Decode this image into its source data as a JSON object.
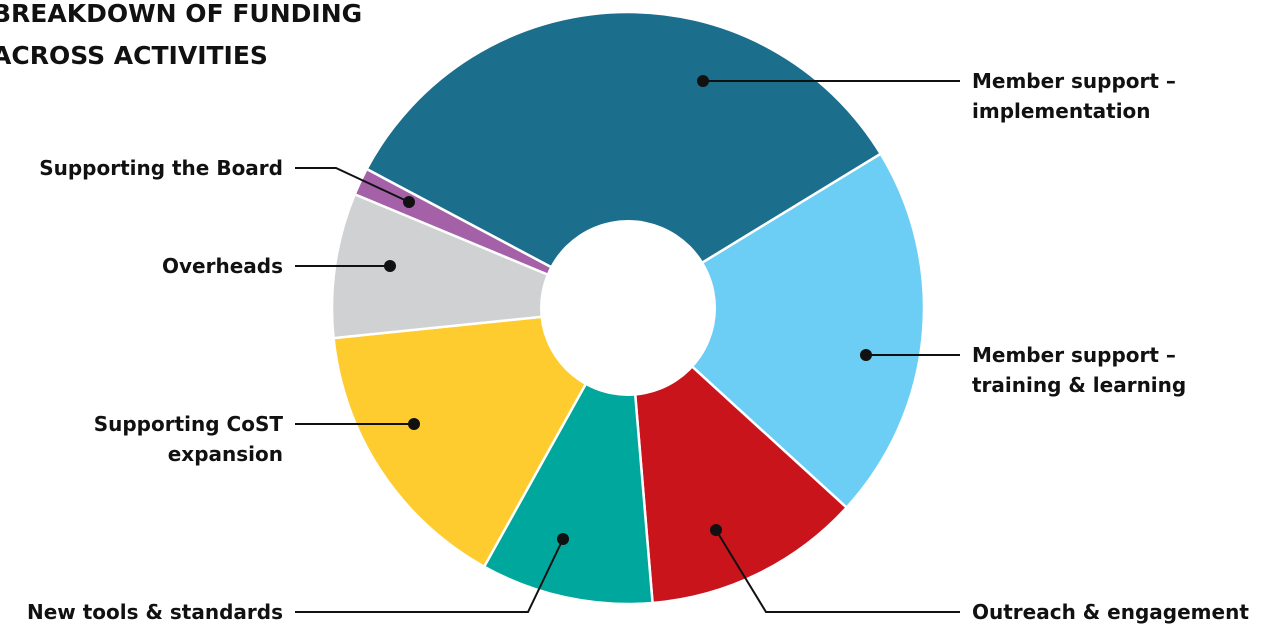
{
  "chart_data": {
    "type": "pie",
    "variant": "donut",
    "title_lines": [
      "BREAKDOWN OF FUNDING",
      "ACROSS ACTIVITIES"
    ],
    "legend": "none (leader-line callouts)",
    "slices": [
      {
        "key": "implementation",
        "label_lines": [
          "Member support –",
          "implementation"
        ],
        "value": 33.5,
        "color": "#1b6e8c"
      },
      {
        "key": "training",
        "label_lines": [
          "Member support –",
          "training & learning"
        ],
        "value": 20.5,
        "color": "#6ccdf5"
      },
      {
        "key": "outreach",
        "label_lines": [
          "Outreach & engagement"
        ],
        "value": 11.9,
        "color": "#c9141c"
      },
      {
        "key": "tools",
        "label_lines": [
          "New tools & standards"
        ],
        "value": 9.4,
        "color": "#00a79d"
      },
      {
        "key": "expansion",
        "label_lines": [
          "Supporting CoST",
          "expansion"
        ],
        "value": 15.3,
        "color": "#fecc2f"
      },
      {
        "key": "overheads",
        "label_lines": [
          "Overheads"
        ],
        "value": 7.9,
        "color": "#d0d1d2"
      },
      {
        "key": "board",
        "label_lines": [
          "Supporting the Board"
        ],
        "value": 1.5,
        "color": "#a561a8"
      }
    ]
  }
}
